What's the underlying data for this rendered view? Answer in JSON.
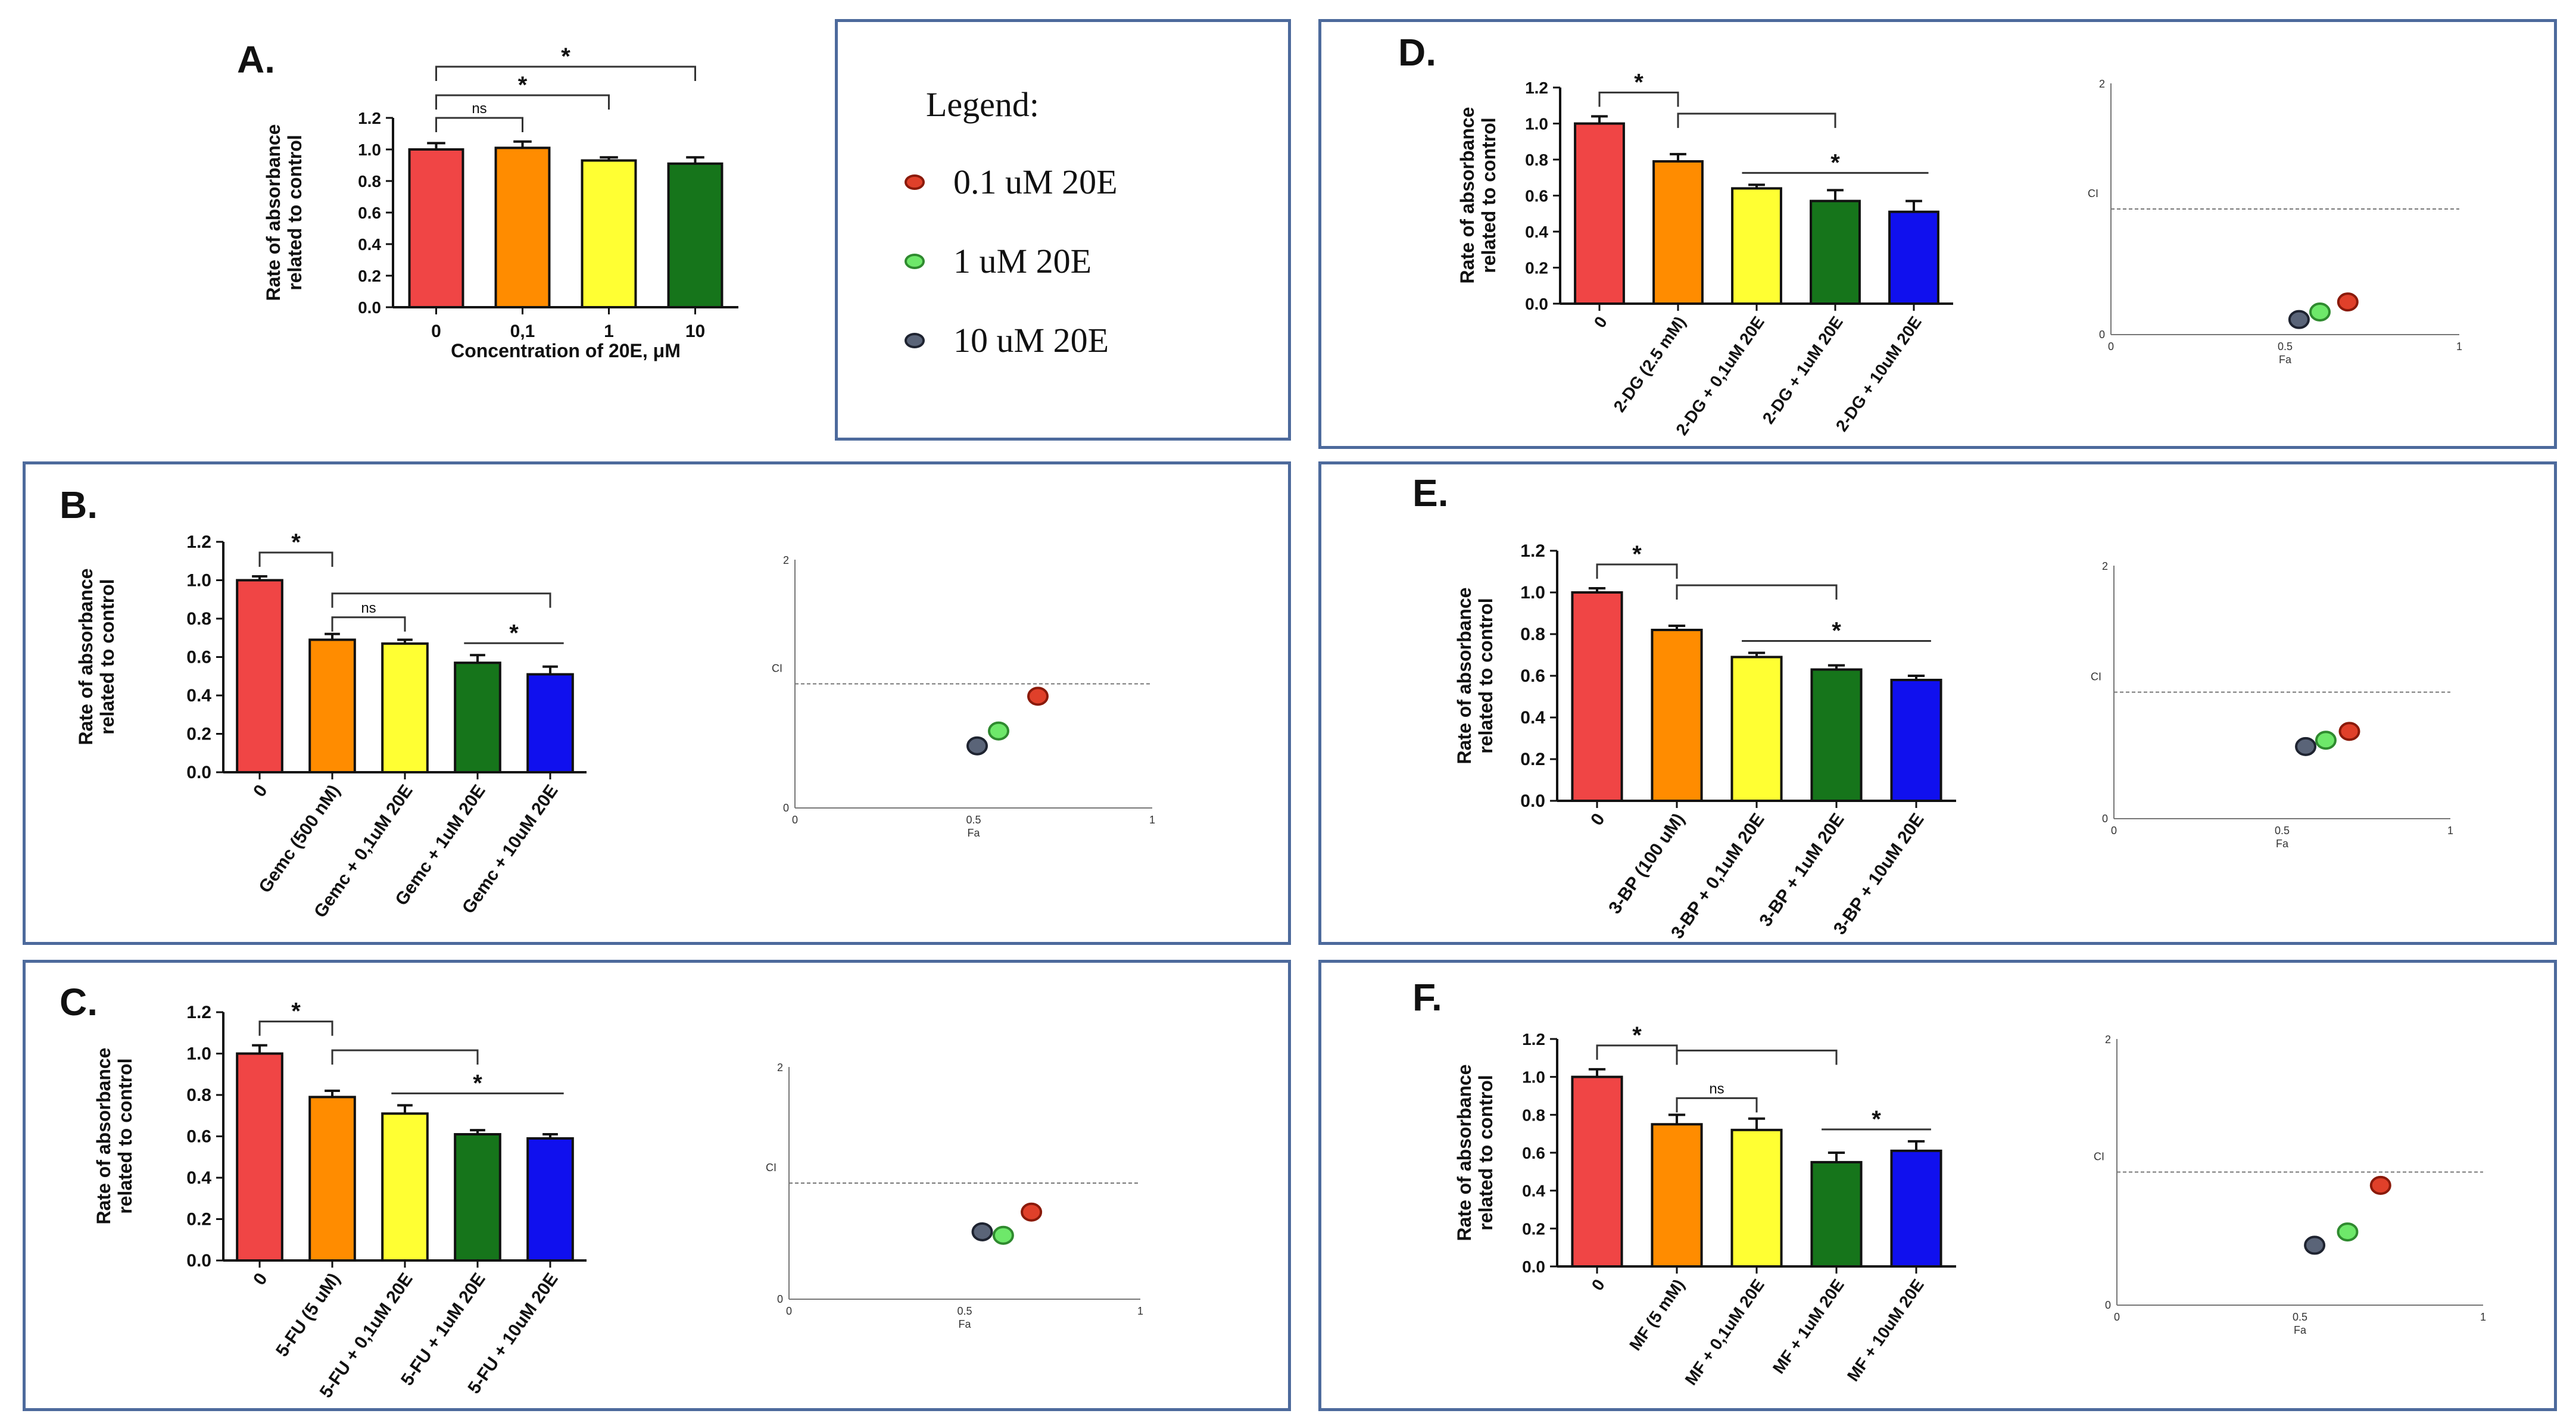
{
  "figure": {
    "legend": {
      "title": "Legend:",
      "items": [
        {
          "label": "0.1 uM 20E",
          "color": "#e0402a",
          "stroke": "#8a1a0a"
        },
        {
          "label": "1 uM 20E",
          "color": "#6ee86a",
          "stroke": "#2f8a2f"
        },
        {
          "label": "10 uM 20E",
          "color": "#5a6478",
          "stroke": "#1e2330"
        }
      ]
    }
  },
  "chart_data": [
    {
      "id": "A",
      "type": "bar",
      "letter": "A.",
      "ylabel": [
        "Rate of absorbance",
        "related to control"
      ],
      "xlabel": "Concentration of 20E, μM",
      "ylim": [
        0,
        1.2
      ],
      "yticks": [
        "0.0",
        "0.2",
        "0.4",
        "0.6",
        "0.8",
        "1.0",
        "1.2"
      ],
      "rotate_labels": false,
      "categories": [
        "0",
        "0,1",
        "1",
        "10"
      ],
      "values": [
        1.0,
        1.01,
        0.93,
        0.91
      ],
      "errors": [
        0.04,
        0.04,
        0.02,
        0.04
      ],
      "colors": [
        "#f04545",
        "#ff8c00",
        "#ffff33",
        "#16751b"
      ],
      "brackets": [
        {
          "from": 0,
          "to": 1,
          "label": "ns"
        },
        {
          "from": 0,
          "to": 2,
          "label": "*"
        },
        {
          "from": 0,
          "to": 3,
          "label": "*"
        }
      ]
    },
    {
      "id": "B",
      "type": "bar",
      "letter": "B.",
      "ylabel": [
        "Rate of absorbance",
        "related to control"
      ],
      "ylim": [
        0,
        1.2
      ],
      "yticks": [
        "0.0",
        "0.2",
        "0.4",
        "0.6",
        "0.8",
        "1.0",
        "1.2"
      ],
      "rotate_labels": true,
      "categories": [
        "0",
        "Gemc (500 nM)",
        "Gemc + 0,1uM 20E",
        "Gemc + 1uM 20E",
        "Gemc + 10uM 20E"
      ],
      "values": [
        1.0,
        0.69,
        0.67,
        0.57,
        0.51
      ],
      "errors": [
        0.02,
        0.03,
        0.02,
        0.04,
        0.04
      ],
      "colors": [
        "#f04545",
        "#ff8c00",
        "#ffff33",
        "#16751b",
        "#1010ee"
      ],
      "brackets": [
        {
          "from": 0,
          "to": 1,
          "label": "*"
        },
        {
          "from": 1,
          "to": 2,
          "label": "ns"
        },
        {
          "from": 1,
          "to": 4,
          "label": ""
        },
        {
          "from": 3,
          "to": 4,
          "label": "*",
          "open": true
        }
      ],
      "ci": {
        "type": "scatter",
        "ylabel": "CI",
        "xlabel": "Fa",
        "xticks": [
          "0",
          "0.5",
          "1"
        ],
        "yticks": [
          "0",
          "2"
        ],
        "ref": 1.0,
        "points": [
          {
            "x": 0.68,
            "y": 0.9
          },
          {
            "x": 0.57,
            "y": 0.62
          },
          {
            "x": 0.51,
            "y": 0.5
          }
        ]
      }
    },
    {
      "id": "C",
      "type": "bar",
      "letter": "C.",
      "ylabel": [
        "Rate of absorbance",
        "related to control"
      ],
      "ylim": [
        0,
        1.2
      ],
      "yticks": [
        "0.0",
        "0.2",
        "0.4",
        "0.6",
        "0.8",
        "1.0",
        "1.2"
      ],
      "rotate_labels": true,
      "categories": [
        "0",
        "5-FU (5 uM)",
        "5-FU + 0,1uM 20E",
        "5-FU + 1uM 20E",
        "5-FU + 10uM 20E"
      ],
      "values": [
        1.0,
        0.79,
        0.71,
        0.61,
        0.59
      ],
      "errors": [
        0.04,
        0.03,
        0.04,
        0.02,
        0.02
      ],
      "colors": [
        "#f04545",
        "#ff8c00",
        "#ffff33",
        "#16751b",
        "#1010ee"
      ],
      "brackets": [
        {
          "from": 0,
          "to": 1,
          "label": "*"
        },
        {
          "from": 1,
          "to": 3,
          "label": ""
        },
        {
          "from": 2,
          "to": 4,
          "label": "*",
          "open": true
        }
      ],
      "ci": {
        "type": "scatter",
        "ylabel": "CI",
        "xlabel": "Fa",
        "xticks": [
          "0",
          "0.5",
          "1"
        ],
        "yticks": [
          "0",
          "2"
        ],
        "ref": 1.0,
        "points": [
          {
            "x": 0.69,
            "y": 0.75
          },
          {
            "x": 0.61,
            "y": 0.55
          },
          {
            "x": 0.55,
            "y": 0.58
          }
        ]
      }
    },
    {
      "id": "D",
      "type": "bar",
      "letter": "D.",
      "ylabel": [
        "Rate of absorbance",
        "related to control"
      ],
      "ylim": [
        0,
        1.2
      ],
      "yticks": [
        "0.0",
        "0.2",
        "0.4",
        "0.6",
        "0.8",
        "1.0",
        "1.2"
      ],
      "rotate_labels": true,
      "categories": [
        "0",
        "2-DG (2.5 mM)",
        "2-DG + 0,1uM 20E",
        "2-DG + 1uM 20E",
        "2-DG + 10uM 20E"
      ],
      "values": [
        1.0,
        0.79,
        0.64,
        0.57,
        0.51
      ],
      "errors": [
        0.04,
        0.04,
        0.02,
        0.06,
        0.06
      ],
      "colors": [
        "#f04545",
        "#ff8c00",
        "#ffff33",
        "#16751b",
        "#1010ee"
      ],
      "brackets": [
        {
          "from": 0,
          "to": 1,
          "label": "*"
        },
        {
          "from": 1,
          "to": 3,
          "label": ""
        },
        {
          "from": 2,
          "to": 4,
          "label": "*",
          "open": true
        }
      ],
      "ci": {
        "type": "scatter",
        "ylabel": "CI",
        "xlabel": "Fa",
        "xticks": [
          "0",
          "0.5",
          "1"
        ],
        "yticks": [
          "0",
          "2"
        ],
        "ref": 1.0,
        "points": [
          {
            "x": 0.68,
            "y": 0.26
          },
          {
            "x": 0.6,
            "y": 0.18
          },
          {
            "x": 0.54,
            "y": 0.12
          }
        ]
      }
    },
    {
      "id": "E",
      "type": "bar",
      "letter": "E.",
      "ylabel": [
        "Rate of absorbance",
        "related to control"
      ],
      "ylim": [
        0,
        1.2
      ],
      "yticks": [
        "0.0",
        "0.2",
        "0.4",
        "0.6",
        "0.8",
        "1.0",
        "1.2"
      ],
      "rotate_labels": true,
      "categories": [
        "0",
        "3-BP (100 uM)",
        "3-BP + 0,1uM 20E",
        "3-BP + 1uM 20E",
        "3-BP + 10uM 20E"
      ],
      "values": [
        1.0,
        0.82,
        0.69,
        0.63,
        0.58
      ],
      "errors": [
        0.02,
        0.02,
        0.02,
        0.02,
        0.02
      ],
      "colors": [
        "#f04545",
        "#ff8c00",
        "#ffff33",
        "#16751b",
        "#1010ee"
      ],
      "brackets": [
        {
          "from": 0,
          "to": 1,
          "label": "*"
        },
        {
          "from": 1,
          "to": 3,
          "label": ""
        },
        {
          "from": 2,
          "to": 4,
          "label": "*",
          "open": true
        }
      ],
      "ci": {
        "type": "scatter",
        "ylabel": "CI",
        "xlabel": "Fa",
        "xticks": [
          "0",
          "0.5",
          "1"
        ],
        "yticks": [
          "0",
          "2"
        ],
        "ref": 1.0,
        "points": [
          {
            "x": 0.7,
            "y": 0.69
          },
          {
            "x": 0.63,
            "y": 0.62
          },
          {
            "x": 0.57,
            "y": 0.57
          }
        ]
      }
    },
    {
      "id": "F",
      "type": "bar",
      "letter": "F.",
      "ylabel": [
        "Rate of absorbance",
        "related to control"
      ],
      "ylim": [
        0,
        1.2
      ],
      "yticks": [
        "0.0",
        "0.2",
        "0.4",
        "0.6",
        "0.8",
        "1.0",
        "1.2"
      ],
      "rotate_labels": true,
      "categories": [
        "0",
        "MF (5 mM)",
        "MF + 0,1uM 20E",
        "MF + 1uM 20E",
        "MF + 10uM 20E"
      ],
      "values": [
        1.0,
        0.75,
        0.72,
        0.55,
        0.61
      ],
      "errors": [
        0.04,
        0.05,
        0.06,
        0.05,
        0.05
      ],
      "colors": [
        "#f04545",
        "#ff8c00",
        "#ffff33",
        "#16751b",
        "#1010ee"
      ],
      "brackets": [
        {
          "from": 0,
          "to": 1,
          "label": "*"
        },
        {
          "from": 1,
          "to": 2,
          "label": "ns"
        },
        {
          "from": 1,
          "to": 3,
          "label": ""
        },
        {
          "from": 3,
          "to": 4,
          "label": "*",
          "open": true
        }
      ],
      "ci": {
        "type": "scatter",
        "ylabel": "CI",
        "xlabel": "Fa",
        "xticks": [
          "0",
          "0.5",
          "1"
        ],
        "yticks": [
          "0",
          "2"
        ],
        "ref": 1.0,
        "points": [
          {
            "x": 0.72,
            "y": 0.9
          },
          {
            "x": 0.63,
            "y": 0.55
          },
          {
            "x": 0.54,
            "y": 0.45
          }
        ]
      }
    }
  ]
}
